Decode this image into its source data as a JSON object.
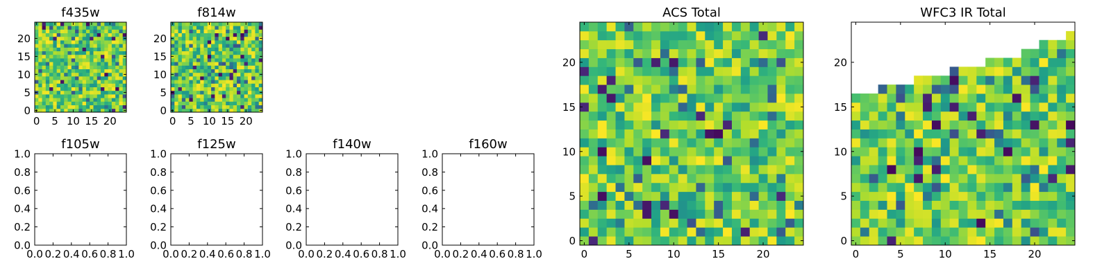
{
  "chart_data": [
    {
      "type": "heatmap",
      "title": "f435w",
      "xlabel": "",
      "ylabel": "",
      "xlim": [
        -0.5,
        24.5
      ],
      "ylim": [
        -0.5,
        24.5
      ],
      "xticks": [
        0,
        5,
        10,
        15,
        20
      ],
      "yticks": [
        0,
        5,
        10,
        15,
        20
      ],
      "grid_size": [
        25,
        25
      ],
      "colormap": "viridis",
      "value_range": [
        0,
        1
      ],
      "seed": 435,
      "mask_rows_above": null,
      "grid": false
    },
    {
      "type": "heatmap",
      "title": "f814w",
      "xlabel": "",
      "ylabel": "",
      "xlim": [
        -0.5,
        24.5
      ],
      "ylim": [
        -0.5,
        24.5
      ],
      "xticks": [
        0,
        5,
        10,
        15,
        20
      ],
      "yticks": [
        0,
        5,
        10,
        15,
        20
      ],
      "grid_size": [
        25,
        25
      ],
      "colormap": "viridis",
      "value_range": [
        0,
        1
      ],
      "seed": 814,
      "mask_rows_above": null,
      "grid": false
    },
    {
      "type": "scatter",
      "title": "f105w",
      "xlabel": "",
      "ylabel": "",
      "xlim": [
        0,
        1
      ],
      "ylim": [
        0,
        1
      ],
      "xticks": [
        "0.0",
        "0.2",
        "0.4",
        "0.6",
        "0.8",
        "1.0"
      ],
      "yticks": [
        "0.0",
        "0.2",
        "0.4",
        "0.6",
        "0.8",
        "1.0"
      ],
      "series": [],
      "grid": false
    },
    {
      "type": "scatter",
      "title": "f125w",
      "xlabel": "",
      "ylabel": "",
      "xlim": [
        0,
        1
      ],
      "ylim": [
        0,
        1
      ],
      "xticks": [
        "0.0",
        "0.2",
        "0.4",
        "0.6",
        "0.8",
        "1.0"
      ],
      "yticks": [
        "0.0",
        "0.2",
        "0.4",
        "0.6",
        "0.8",
        "1.0"
      ],
      "series": [],
      "grid": false
    },
    {
      "type": "scatter",
      "title": "f140w",
      "xlabel": "",
      "ylabel": "",
      "xlim": [
        0,
        1
      ],
      "ylim": [
        0,
        1
      ],
      "xticks": [
        "0.0",
        "0.2",
        "0.4",
        "0.6",
        "0.8",
        "1.0"
      ],
      "yticks": [
        "0.0",
        "0.2",
        "0.4",
        "0.6",
        "0.8",
        "1.0"
      ],
      "series": [],
      "grid": false
    },
    {
      "type": "scatter",
      "title": "f160w",
      "xlabel": "",
      "ylabel": "",
      "xlim": [
        0,
        1
      ],
      "ylim": [
        0,
        1
      ],
      "xticks": [
        "0.0",
        "0.2",
        "0.4",
        "0.6",
        "0.8",
        "1.0"
      ],
      "yticks": [
        "0.0",
        "0.2",
        "0.4",
        "0.6",
        "0.8",
        "1.0"
      ],
      "series": [],
      "grid": false
    },
    {
      "type": "heatmap",
      "title": "ACS Total",
      "xlabel": "",
      "ylabel": "",
      "xlim": [
        -0.5,
        24.5
      ],
      "ylim": [
        -0.5,
        24.5
      ],
      "xticks": [
        0,
        5,
        10,
        15,
        20
      ],
      "yticks": [
        0,
        5,
        10,
        15,
        20
      ],
      "grid_size": [
        25,
        25
      ],
      "colormap": "viridis",
      "value_range": [
        0,
        1
      ],
      "seed": 1249,
      "mask_rows_above": null,
      "grid": false
    },
    {
      "type": "heatmap",
      "title": "WFC3 IR Total",
      "xlabel": "",
      "ylabel": "",
      "xlim": [
        -0.5,
        24.5
      ],
      "ylim": [
        -0.5,
        24.5
      ],
      "xticks": [
        0,
        5,
        10,
        15,
        20
      ],
      "yticks": [
        0,
        5,
        10,
        15,
        20
      ],
      "grid_size": [
        25,
        25
      ],
      "colormap": "viridis",
      "value_range": [
        0,
        1
      ],
      "seed": 3,
      "mask_rows_above": [
        16,
        16,
        16,
        17,
        17,
        17,
        17,
        18,
        18,
        18,
        18,
        19,
        19,
        19,
        19,
        20,
        20,
        20,
        20,
        21,
        21,
        22,
        22,
        22,
        23
      ],
      "grid": false
    }
  ]
}
